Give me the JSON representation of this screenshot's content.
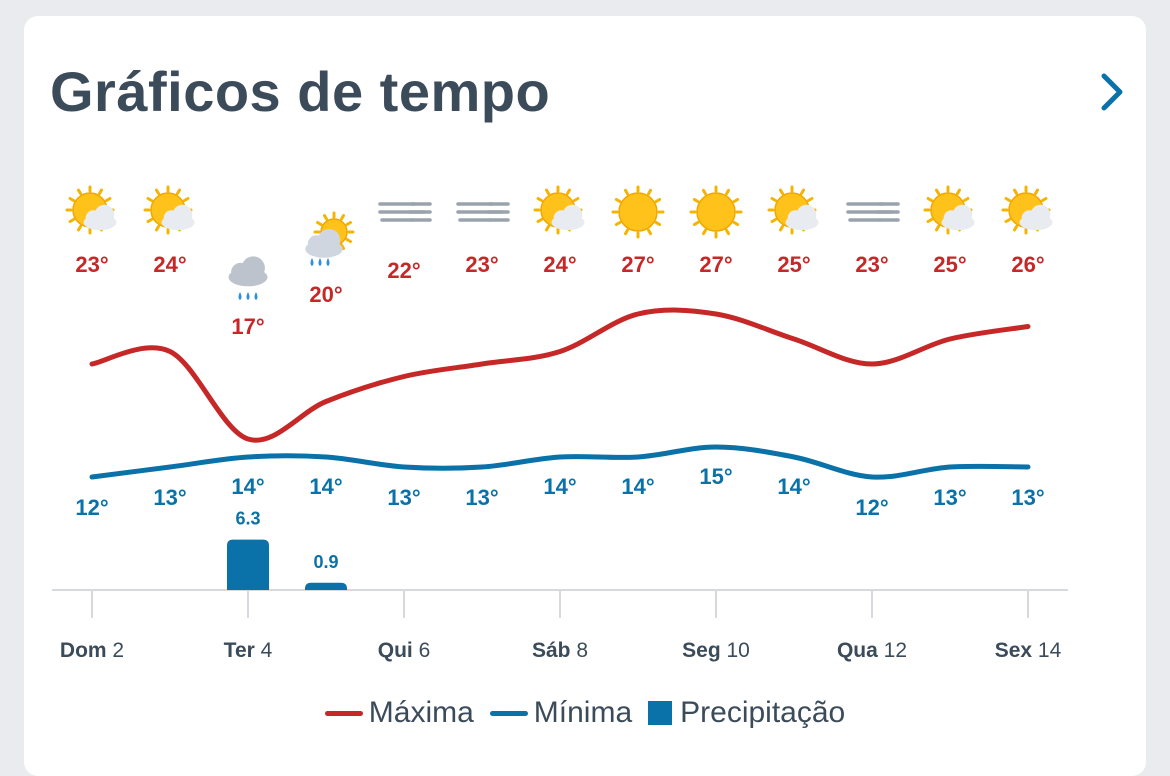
{
  "header": {
    "title": "Gráficos de tempo",
    "next_icon": "chevron-right-icon"
  },
  "colors": {
    "max": "#c62828",
    "min": "#0a72a8",
    "precip": "#0a72a8",
    "text": "#3b4b5a",
    "axis": "#d6d9dd"
  },
  "legend": {
    "max_label": "Máxima",
    "min_label": "Mínima",
    "precip_label": "Precipitação"
  },
  "chart_data": {
    "type": "line",
    "x_ticks": [
      {
        "day": "Dom",
        "num": "2"
      },
      {
        "day": "Ter",
        "num": "4"
      },
      {
        "day": "Qui",
        "num": "6"
      },
      {
        "day": "Sáb",
        "num": "8"
      },
      {
        "day": "Seg",
        "num": "10"
      },
      {
        "day": "Qua",
        "num": "12"
      },
      {
        "day": "Sex",
        "num": "14"
      }
    ],
    "days": [
      2,
      3,
      4,
      5,
      6,
      7,
      8,
      9,
      10,
      11,
      12,
      13,
      14
    ],
    "icons": [
      "sun-cloud-icon",
      "sun-cloud-icon",
      "rain-cloud-icon",
      "sun-rain-cloud-icon",
      "fog-icon",
      "fog-icon",
      "sun-cloud-icon",
      "sun-icon",
      "sun-icon",
      "sun-cloud-icon",
      "fog-icon",
      "sun-cloud-icon",
      "sun-cloud-icon"
    ],
    "series": [
      {
        "name": "Máxima",
        "values": [
          23,
          24,
          17,
          20,
          22,
          23,
          24,
          27,
          27,
          25,
          23,
          25,
          26
        ],
        "labels": [
          "23°",
          "24°",
          "17°",
          "20°",
          "22°",
          "23°",
          "24°",
          "27°",
          "27°",
          "25°",
          "23°",
          "25°",
          "26°"
        ]
      },
      {
        "name": "Mínima",
        "values": [
          12,
          13,
          14,
          14,
          13,
          13,
          14,
          14,
          15,
          14,
          12,
          13,
          13
        ],
        "labels": [
          "12°",
          "13°",
          "14°",
          "14°",
          "13°",
          "13°",
          "14°",
          "14°",
          "15°",
          "14°",
          "12°",
          "13°",
          "13°"
        ]
      },
      {
        "name": "Precipitação",
        "values": [
          0,
          0,
          6.3,
          0.9,
          0,
          0,
          0,
          0,
          0,
          0,
          0,
          0,
          0
        ],
        "labels": [
          "",
          "",
          "6.3",
          "0.9",
          "",
          "",
          "",
          "",
          "",
          "",
          "",
          "",
          ""
        ]
      }
    ]
  }
}
